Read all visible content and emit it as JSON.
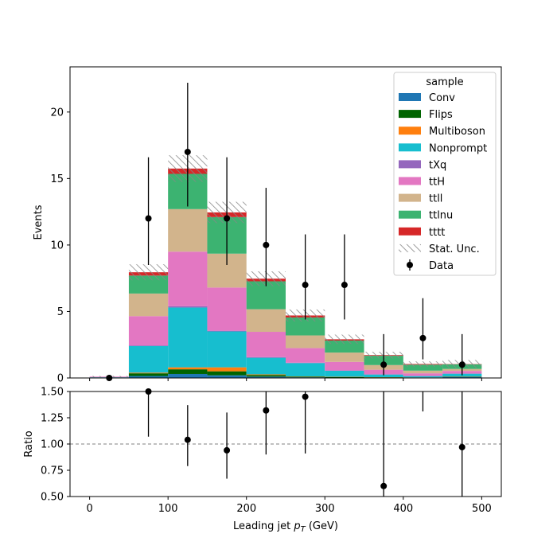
{
  "chart_data": [
    {
      "type": "bar",
      "stacked": true,
      "bin_edges": [
        0,
        50,
        100,
        150,
        200,
        250,
        300,
        350,
        400,
        450,
        500
      ],
      "xlim": [
        -25,
        525
      ],
      "ylim": [
        0,
        23.4
      ],
      "yticks": [
        0,
        5,
        10,
        15,
        20
      ],
      "ylabel": "Events",
      "legend": {
        "title": "sample",
        "placement": "top-right"
      },
      "colors": {
        "Conv": "#1f77b4",
        "Flips": "#006400",
        "Multiboson": "#ff7f0e",
        "Nonprompt": "#17becf",
        "tXq": "#9467bd",
        "ttH": "#e377c2",
        "ttll": "#d2b48c",
        "ttlnu": "#3cb371",
        "tttt": "#d62728",
        "data": "#000000"
      },
      "series": [
        {
          "name": "Conv",
          "values": [
            0.0,
            0.15,
            0.3,
            0.2,
            0.1,
            0.05,
            0.03,
            0.03,
            0.02,
            0.08
          ]
        },
        {
          "name": "Flips",
          "values": [
            0.0,
            0.2,
            0.35,
            0.3,
            0.12,
            0.05,
            0.04,
            0.02,
            0.01,
            0.03
          ]
        },
        {
          "name": "Multiboson",
          "values": [
            0.0,
            0.05,
            0.15,
            0.3,
            0.05,
            0.02,
            0.02,
            0.01,
            0.01,
            0.01
          ]
        },
        {
          "name": "Nonprompt",
          "values": [
            0.05,
            2.0,
            4.5,
            2.7,
            1.25,
            1.0,
            0.45,
            0.2,
            0.1,
            0.2
          ]
        },
        {
          "name": "tXq",
          "values": [
            0.0,
            0.05,
            0.1,
            0.05,
            0.05,
            0.03,
            0.02,
            0.01,
            0.01,
            0.01
          ]
        },
        {
          "name": "ttH",
          "values": [
            0.05,
            2.2,
            4.1,
            3.25,
            1.9,
            1.1,
            0.65,
            0.35,
            0.2,
            0.2
          ]
        },
        {
          "name": "ttll",
          "values": [
            0.0,
            1.7,
            3.2,
            2.55,
            1.7,
            0.95,
            0.7,
            0.35,
            0.2,
            0.15
          ]
        },
        {
          "name": "ttlnu",
          "values": [
            0.0,
            1.35,
            2.65,
            2.75,
            2.1,
            1.35,
            0.9,
            0.7,
            0.45,
            0.35
          ]
        },
        {
          "name": "tttt",
          "values": [
            0.0,
            0.25,
            0.4,
            0.35,
            0.2,
            0.15,
            0.1,
            0.05,
            0.05,
            0.02
          ]
        }
      ],
      "stat_unc": {
        "name": "Stat. Unc.",
        "values": [
          0.05,
          0.6,
          1.0,
          0.8,
          0.55,
          0.45,
          0.35,
          0.25,
          0.2,
          0.3
        ]
      },
      "data": {
        "name": "Data",
        "x": [
          25,
          75,
          125,
          175,
          225,
          275,
          325,
          375,
          425,
          475
        ],
        "y": [
          0,
          12,
          17,
          12,
          10,
          7,
          7,
          1,
          3,
          1
        ],
        "err_low": [
          0,
          3.5,
          4.1,
          3.5,
          3.1,
          2.6,
          2.6,
          0.8,
          1.6,
          0.8
        ],
        "err_high": [
          0,
          4.6,
          5.2,
          4.6,
          4.3,
          3.8,
          3.8,
          2.3,
          3.0,
          2.3
        ]
      }
    },
    {
      "type": "scatter",
      "xlim": [
        -25,
        525
      ],
      "ylim": [
        0.5,
        1.5
      ],
      "xticks": [
        0,
        100,
        200,
        300,
        400,
        500
      ],
      "yticks": [
        0.5,
        0.75,
        1.0,
        1.25,
        1.5
      ],
      "ytick_labels": [
        "0.50",
        "0.75",
        "1.00",
        "1.25",
        "1.50"
      ],
      "xlabel": "Leading jet  p_T (GeV)",
      "ylabel": "Ratio",
      "reference_line": 1.0,
      "x": [
        75,
        125,
        175,
        225,
        275,
        375,
        475
      ],
      "y": [
        1.5,
        1.04,
        0.94,
        1.32,
        1.45,
        0.6,
        0.97
      ],
      "err_low": [
        0.43,
        0.25,
        0.27,
        0.42,
        0.54,
        0.6,
        0.97
      ],
      "err_high": [
        0.6,
        0.33,
        0.36,
        0.55,
        0.75,
        1.5,
        1.5
      ],
      "extra_errorbars": [
        {
          "x": 425,
          "low": 1.31,
          "high": 1.5
        }
      ]
    }
  ]
}
